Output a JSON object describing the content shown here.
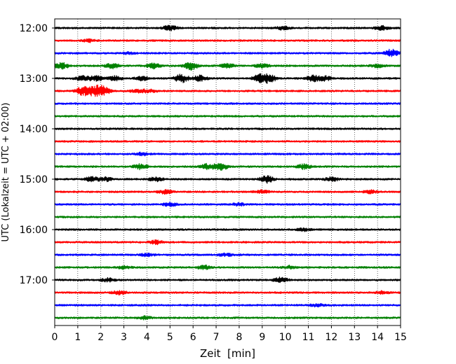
{
  "chart_data": {
    "type": "line",
    "title": "",
    "xlabel": "Zeit  [min]",
    "ylabel": "UTC (Lokalzeit = UTC + 02:00)",
    "xlim": [
      0,
      15
    ],
    "x_ticks": [
      0,
      1,
      2,
      3,
      4,
      5,
      6,
      7,
      8,
      9,
      10,
      11,
      12,
      13,
      14,
      15
    ],
    "x_tick_labels": [
      "0",
      "1",
      "2",
      "3",
      "4",
      "5",
      "6",
      "7",
      "8",
      "9",
      "10",
      "11",
      "12",
      "13",
      "14",
      "15"
    ],
    "y_tick_labels": [
      "12:00",
      "13:00",
      "14:00",
      "15:00",
      "16:00",
      "17:00"
    ],
    "vertical_grid": true,
    "trace_interval_min": 15,
    "colors": [
      "#000000",
      "#ff0000",
      "#0000ff",
      "#008000"
    ],
    "traces": [
      {
        "start": "12:00",
        "color": "#000000",
        "events": [
          [
            5.0,
            0.5
          ],
          [
            9.9,
            0.35
          ],
          [
            14.2,
            0.4
          ]
        ]
      },
      {
        "start": "12:15",
        "color": "#ff0000",
        "events": [
          [
            1.5,
            0.3
          ]
        ]
      },
      {
        "start": "12:30",
        "color": "#0000ff",
        "events": [
          [
            3.2,
            0.2
          ],
          [
            14.6,
            0.8
          ]
        ]
      },
      {
        "start": "12:45",
        "color": "#008000",
        "events": [
          [
            0.3,
            0.6
          ],
          [
            2.5,
            0.5
          ],
          [
            4.3,
            0.5
          ],
          [
            5.9,
            0.8
          ],
          [
            7.5,
            0.4
          ],
          [
            9.0,
            0.4
          ],
          [
            14.0,
            0.3
          ]
        ]
      },
      {
        "start": "13:00",
        "color": "#000000",
        "events": [
          [
            1.2,
            0.6
          ],
          [
            1.8,
            0.5
          ],
          [
            2.6,
            0.5
          ],
          [
            3.8,
            0.4
          ],
          [
            5.5,
            0.9
          ],
          [
            6.3,
            0.6
          ],
          [
            8.9,
            0.8
          ],
          [
            9.3,
            0.8
          ],
          [
            11.2,
            0.6
          ],
          [
            11.7,
            0.5
          ]
        ]
      },
      {
        "start": "13:15",
        "color": "#ff0000",
        "events": [
          [
            1.2,
            0.9
          ],
          [
            1.7,
            1.0
          ],
          [
            2.1,
            0.9
          ],
          [
            3.6,
            0.3
          ],
          [
            4.1,
            0.3
          ]
        ]
      },
      {
        "start": "13:30",
        "color": "#0000ff",
        "events": []
      },
      {
        "start": "13:45",
        "color": "#008000",
        "events": []
      },
      {
        "start": "14:00",
        "color": "#000000",
        "events": []
      },
      {
        "start": "14:15",
        "color": "#ff0000",
        "events": []
      },
      {
        "start": "14:30",
        "color": "#0000ff",
        "events": [
          [
            3.8,
            0.3
          ]
        ]
      },
      {
        "start": "14:45",
        "color": "#008000",
        "events": [
          [
            3.7,
            0.5
          ],
          [
            6.6,
            0.5
          ],
          [
            7.2,
            0.7
          ],
          [
            10.8,
            0.5
          ]
        ]
      },
      {
        "start": "15:00",
        "color": "#000000",
        "events": [
          [
            1.6,
            0.5
          ],
          [
            2.2,
            0.4
          ],
          [
            4.4,
            0.4
          ],
          [
            9.2,
            0.7
          ],
          [
            12.0,
            0.4
          ]
        ]
      },
      {
        "start": "15:15",
        "color": "#ff0000",
        "events": [
          [
            4.8,
            0.4
          ],
          [
            9.0,
            0.3
          ],
          [
            13.7,
            0.3
          ]
        ]
      },
      {
        "start": "15:30",
        "color": "#0000ff",
        "events": [
          [
            5.0,
            0.4
          ],
          [
            8.0,
            0.3
          ]
        ]
      },
      {
        "start": "15:45",
        "color": "#008000",
        "events": []
      },
      {
        "start": "16:00",
        "color": "#000000",
        "events": [
          [
            10.8,
            0.3
          ]
        ]
      },
      {
        "start": "16:15",
        "color": "#ff0000",
        "events": [
          [
            4.4,
            0.4
          ]
        ]
      },
      {
        "start": "16:30",
        "color": "#0000ff",
        "events": [
          [
            4.0,
            0.3
          ],
          [
            7.4,
            0.3
          ]
        ]
      },
      {
        "start": "16:45",
        "color": "#008000",
        "events": [
          [
            3.0,
            0.3
          ],
          [
            6.5,
            0.4
          ],
          [
            10.2,
            0.3
          ]
        ]
      },
      {
        "start": "17:00",
        "color": "#000000",
        "events": [
          [
            2.3,
            0.4
          ],
          [
            9.8,
            0.5
          ]
        ]
      },
      {
        "start": "17:15",
        "color": "#ff0000",
        "events": [
          [
            2.8,
            0.4
          ],
          [
            14.2,
            0.3
          ]
        ]
      },
      {
        "start": "17:30",
        "color": "#0000ff",
        "events": [
          [
            11.4,
            0.3
          ]
        ]
      },
      {
        "start": "17:45",
        "color": "#008000",
        "events": [
          [
            3.9,
            0.3
          ]
        ]
      }
    ]
  }
}
